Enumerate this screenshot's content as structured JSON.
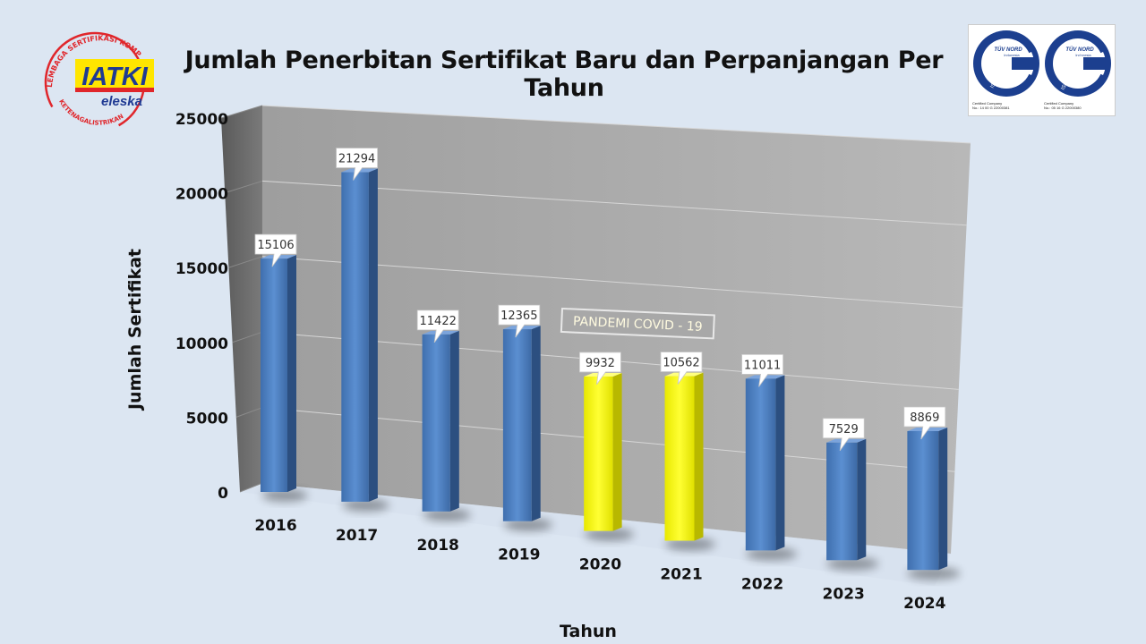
{
  "header": {
    "title": "Jumlah Penerbitan Sertifikat Baru dan Perpanjangan Per Tahun"
  },
  "logo_left": {
    "arc_text": "LEMBAGA SERTIFIKASI KOMPETENSI",
    "bottom_text": "KETENAGALISTRIKAN",
    "main": "IATKI",
    "sub": "eleska"
  },
  "logo_right": {
    "badges": [
      {
        "brand": "TÜV NORD",
        "country": "Indonesia",
        "standard": "ISO 9001:2015",
        "caption": "Certified Company",
        "cert_no": "No.: 14 00 G 22000381"
      },
      {
        "brand": "TÜV NORD",
        "country": "Indonesia",
        "standard": "ISO 45001:2018",
        "caption": "Certified Company",
        "cert_no": "No.: 05 16 G 22000380"
      }
    ]
  },
  "annotation": "PANDEMI COVID - 19",
  "colors": {
    "normal": "#4f81bd",
    "highlight": "#ffff00"
  },
  "chart_data": {
    "type": "bar",
    "categories": [
      "2016",
      "2017",
      "2018",
      "2019",
      "2020",
      "2021",
      "2022",
      "2023",
      "2024"
    ],
    "values": [
      15106,
      21294,
      11422,
      12365,
      9932,
      10562,
      11011,
      7529,
      8869
    ],
    "highlighted": [
      "2020",
      "2021"
    ],
    "xlabel": "Tahun",
    "ylabel": "Jumlah Sertifikat",
    "ylim": [
      0,
      25000
    ],
    "yticks": [
      0,
      5000,
      10000,
      15000,
      20000,
      25000
    ],
    "grid": true,
    "legend": "none"
  }
}
